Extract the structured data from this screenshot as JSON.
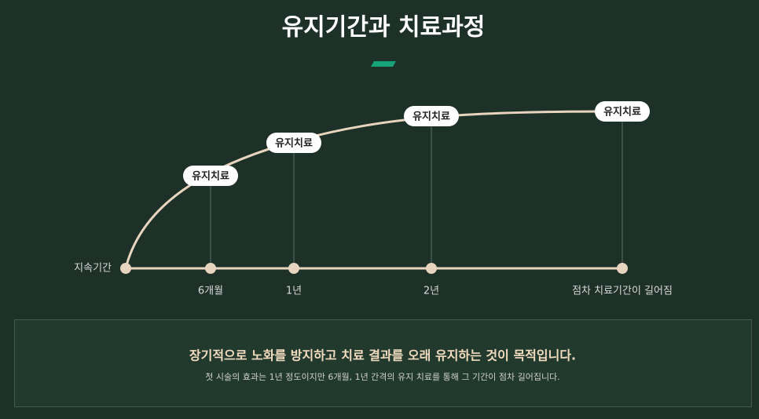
{
  "header": {
    "title": "유지기간과 치료과정"
  },
  "timeline": {
    "axis_label": "지속기간",
    "milestones": [
      {
        "label": "6개월",
        "badge": "유지치료"
      },
      {
        "label": "1년",
        "badge": "유지치료"
      },
      {
        "label": "2년",
        "badge": "유지치료"
      },
      {
        "label": "점차 치료기간이 길어짐",
        "badge": "유지치료"
      }
    ]
  },
  "summary": {
    "headline": "장기적으로 노화를 방지하고 치료 결과를 오래 유지하는 것이 목적입니다.",
    "text": "첫 시술의 효과는 1년 정도이지만 6개월, 1년 간격의 유지 치료를 통해 그 기간이 점차 길어집니다."
  }
}
